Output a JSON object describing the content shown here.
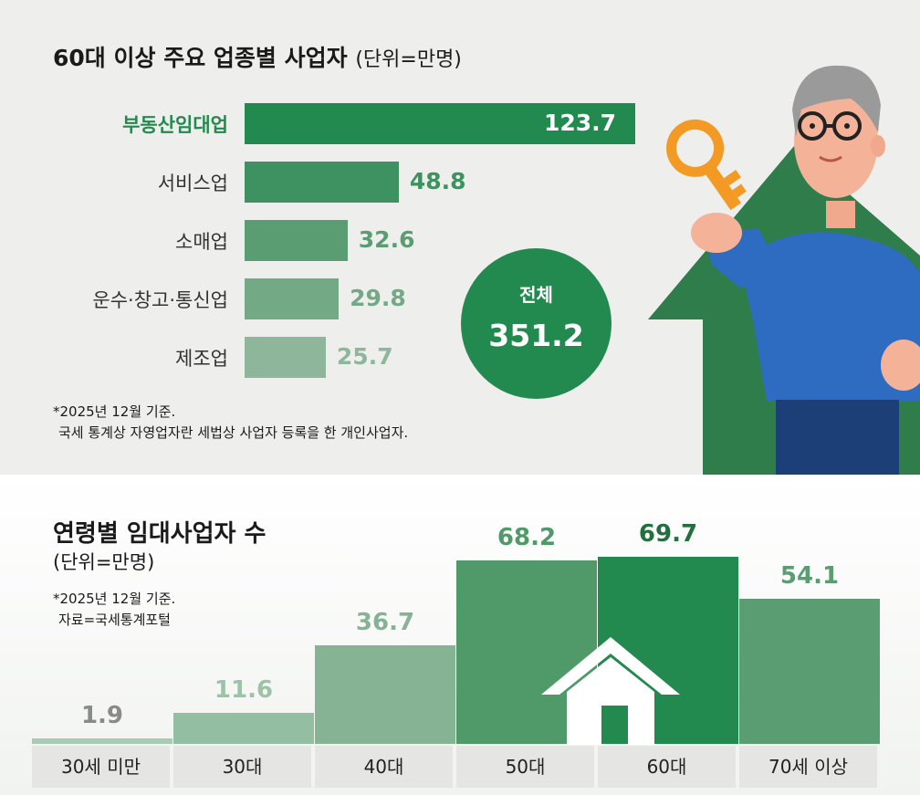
{
  "chart_data": [
    {
      "type": "bar",
      "orientation": "horizontal",
      "title": "60대 이상 주요 업종별 사업자",
      "unit_label": "(단위=만명)",
      "categories": [
        "부동산임대업",
        "서비스업",
        "소매업",
        "운수·창고·통신업",
        "제조업"
      ],
      "values": [
        123.7,
        48.8,
        32.6,
        29.8,
        25.7
      ],
      "value_labels": [
        "123.7",
        "48.8",
        "32.6",
        "29.8",
        "25.7"
      ],
      "highlight_index": 0,
      "total_label": "전체",
      "total_value": "351.2",
      "notes": [
        "*2025년 12월 기준.",
        "국세 통계상 자영업자란 세법상 사업자 등록을 한 개인사업자."
      ],
      "colors": [
        "#238a4f",
        "#3e9160",
        "#5a9d73",
        "#74a986",
        "#8db69b"
      ],
      "highlight_label_color": "#238a4f"
    },
    {
      "type": "bar",
      "orientation": "vertical",
      "title": "연령별 임대사업자 수",
      "unit_label": "(단위=만명)",
      "categories": [
        "30세 미만",
        "30대",
        "40대",
        "50대",
        "60대",
        "70세 이상"
      ],
      "values": [
        1.9,
        11.6,
        36.7,
        68.2,
        69.7,
        54.1
      ],
      "value_labels": [
        "1.9",
        "11.6",
        "36.7",
        "68.2",
        "69.7",
        "54.1"
      ],
      "highlight_index": 4,
      "notes": [
        "*2025년 12월 기준.",
        "자료=국세통계포털"
      ],
      "colors": [
        "#a9cbb3",
        "#94bea2",
        "#85b394",
        "#4f9a68",
        "#238a4f",
        "#5a9d73"
      ],
      "label_colors": [
        "#8a8a8a",
        "#9cc3a8",
        "#86b295",
        "#4f9a68",
        "#23703f",
        "#5a9d73"
      ]
    }
  ]
}
